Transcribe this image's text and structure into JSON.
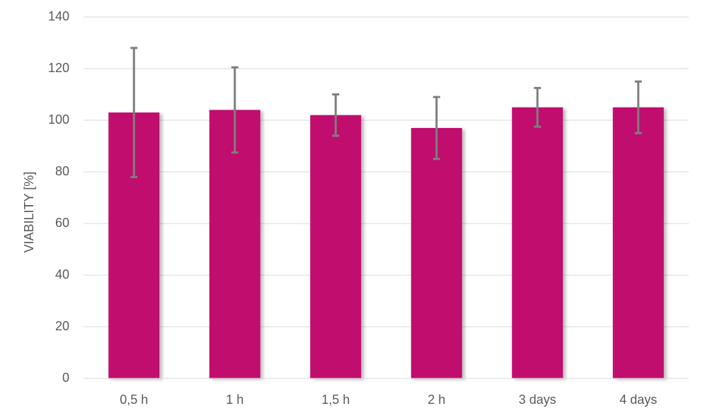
{
  "chart_data": {
    "type": "bar",
    "y_label": "VIABILITY [%]",
    "categories": [
      "0,5 h",
      "1 h",
      "1,5 h",
      "2 h",
      "3 days",
      "4 days"
    ],
    "values": [
      103,
      104,
      102,
      97,
      105,
      105
    ],
    "errors": [
      25,
      16.5,
      8,
      12,
      7.5,
      10
    ],
    "color": "#c00d6e",
    "error_color": "#7f7f7f",
    "ylim": [
      0,
      140
    ],
    "yticks": [
      0,
      20,
      40,
      60,
      80,
      100,
      120,
      140
    ],
    "grid": true
  }
}
